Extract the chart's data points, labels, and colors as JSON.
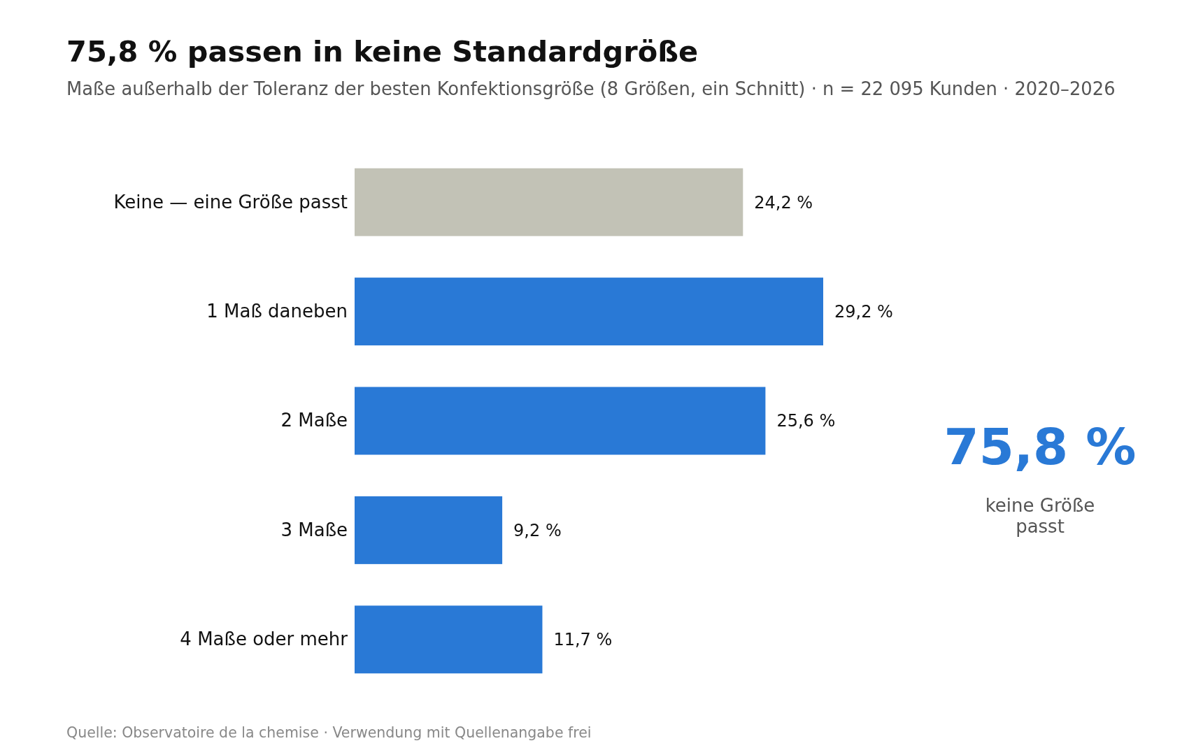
{
  "chart_data": {
    "type": "bar",
    "orientation": "horizontal",
    "title": "75,8 % passen in keine Standardgröße",
    "subtitle": "Maße außerhalb der Toleranz der besten Konfektionsgröße (8 Größen, ein Schnitt) · n = 22 095 Kunden · 2020–2026",
    "categories": [
      "Keine — eine Größe passt",
      "1 Maß daneben",
      "2 Maße",
      "3 Maße",
      "4 Maße oder mehr"
    ],
    "values": [
      24.2,
      29.2,
      25.6,
      9.2,
      11.7
    ],
    "colors": [
      "#c2c2b6",
      "#2979d6",
      "#2979d6",
      "#2979d6",
      "#2979d6"
    ],
    "value_labels": [
      "24,2 %",
      "29,2 %",
      "25,6 %",
      "9,2 %",
      "11,7 %"
    ],
    "tick_labels": "y",
    "annotations": [
      "75,8 %",
      "keine Größe passt",
      "Quelle: Observatoire de la chemise · Verwendung mit Quellenangabe frei"
    ]
  }
}
